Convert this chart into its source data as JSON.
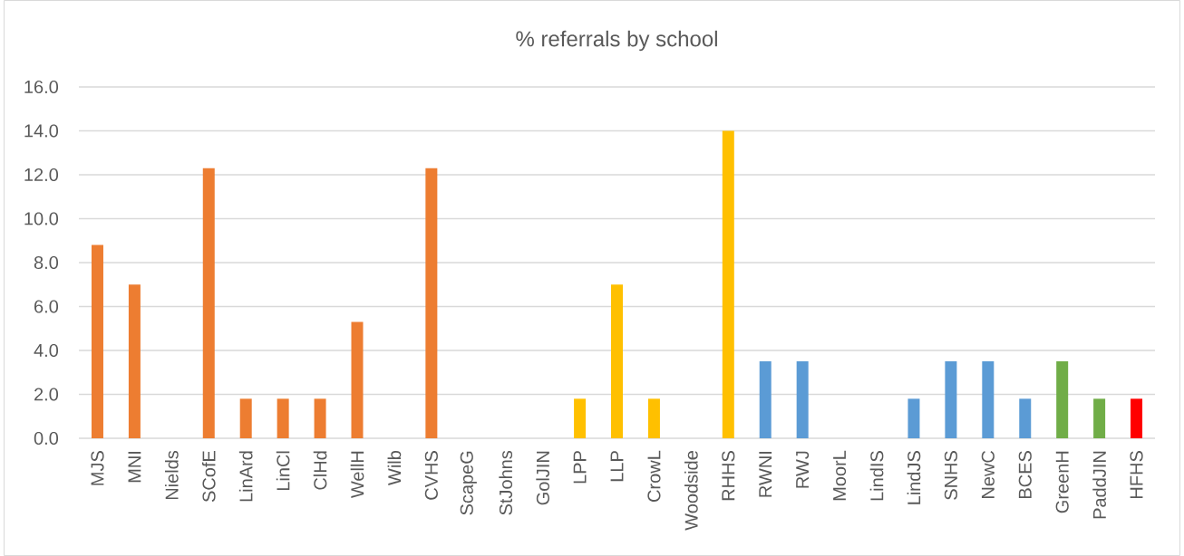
{
  "chart_data": {
    "type": "bar",
    "title": "% referrals by school",
    "categories": [
      "MJS",
      "MNI",
      "Nields",
      "SCofE",
      "LinArd",
      "LinCl",
      "ClHd",
      "WellH",
      "Wilb",
      "CVHS",
      "ScapeG",
      "StJohns",
      "GolJIN",
      "LPP",
      "LLP",
      "CrowL",
      "Woodside",
      "RHHS",
      "RWNI",
      "RWJ",
      "MoorL",
      "LindIS",
      "LindJS",
      "SNHS",
      "NewC",
      "BCES",
      "GreenH",
      "PaddJIN",
      "HFHS"
    ],
    "values": [
      8.8,
      7.0,
      0,
      12.3,
      1.8,
      1.8,
      1.8,
      5.3,
      0,
      12.3,
      0,
      0,
      0,
      1.8,
      7.0,
      1.8,
      0,
      14.0,
      3.5,
      3.5,
      0,
      0,
      1.8,
      3.5,
      3.5,
      1.8,
      3.5,
      1.8,
      1.8
    ],
    "colors": [
      "#ed7d31",
      "#ed7d31",
      "#ed7d31",
      "#ed7d31",
      "#ed7d31",
      "#ed7d31",
      "#ed7d31",
      "#ed7d31",
      "#ed7d31",
      "#ed7d31",
      "#ffc000",
      "#ffc000",
      "#ffc000",
      "#ffc000",
      "#ffc000",
      "#ffc000",
      "#ffc000",
      "#ffc000",
      "#5b9bd5",
      "#5b9bd5",
      "#5b9bd5",
      "#5b9bd5",
      "#5b9bd5",
      "#5b9bd5",
      "#5b9bd5",
      "#5b9bd5",
      "#70ad47",
      "#70ad47",
      "#ff0000"
    ],
    "ylim": [
      0,
      16
    ],
    "yticks": [
      {
        "value": 0,
        "label": "0.0"
      },
      {
        "value": 2,
        "label": "2.0"
      },
      {
        "value": 4,
        "label": "4.0"
      },
      {
        "value": 6,
        "label": "6.0"
      },
      {
        "value": 8,
        "label": "8.0"
      },
      {
        "value": 10,
        "label": "10.0"
      },
      {
        "value": 12,
        "label": "12.0"
      },
      {
        "value": 14,
        "label": "14.0"
      },
      {
        "value": 16,
        "label": "16.0"
      }
    ],
    "grid": "y"
  }
}
